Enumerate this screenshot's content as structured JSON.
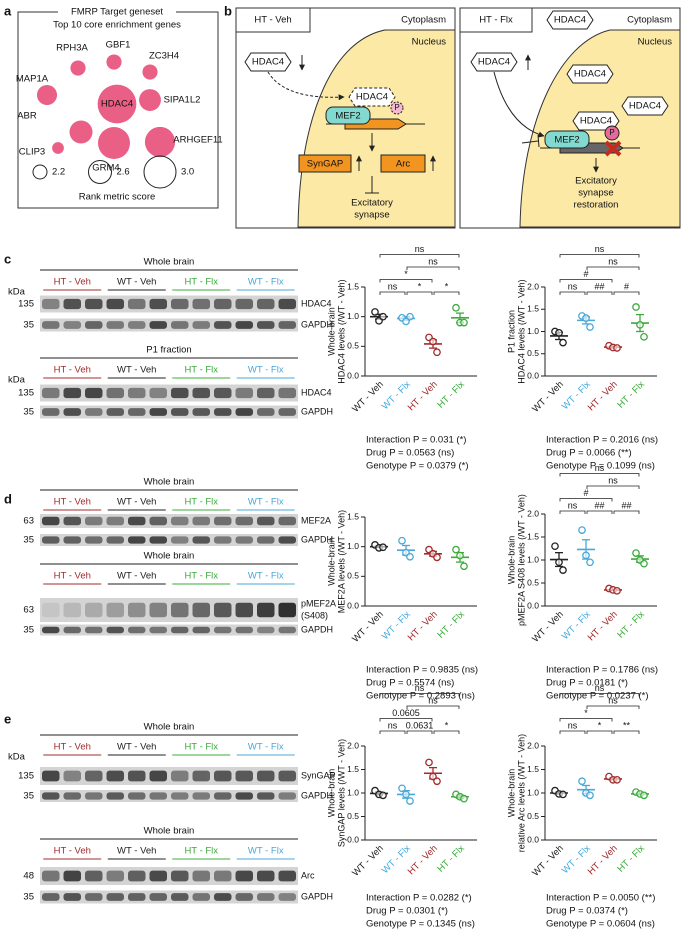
{
  "panel_labels": [
    "a",
    "b",
    "c",
    "d",
    "e"
  ],
  "diagram": {
    "left": {
      "condition": "HT - Veh",
      "cytoplasm": "Cytoplasm",
      "nucleus": "Nucleus",
      "hdac4": [
        "HDAC4",
        "HDAC4"
      ],
      "phospho": "P",
      "mef2": "MEF2",
      "syngap": "SynGAP",
      "arc": "Arc",
      "outcome": [
        "Excitatory",
        "synapse"
      ]
    },
    "right": {
      "condition": "HT - Flx",
      "cytoplasm": "Cytoplasm",
      "nucleus": "Nucleus",
      "hdac4": [
        "HDAC4",
        "HDAC4",
        "HDAC4",
        "HDAC4",
        "HDAC4"
      ],
      "phospho": "P",
      "mef2": "MEF2",
      "outcome": [
        "Excitatory",
        "synapse",
        "restoration"
      ]
    }
  },
  "blots": [
    {
      "title": "Whole brain",
      "groups": [
        "HT - Veh",
        "WT - Veh",
        "HT - Flx",
        "WT - Flx"
      ],
      "colors": [
        "#a32b2b",
        "#222222",
        "#3eaa3e",
        "#4aa8d8"
      ],
      "kda": "kDa",
      "markers": [
        135,
        35
      ],
      "bands": [
        "HDAC4",
        "GAPDH"
      ]
    },
    {
      "title": "P1 fraction",
      "groups": [
        "HT - Veh",
        "WT - Veh",
        "HT - Flx",
        "WT - Flx"
      ],
      "colors": [
        "#a32b2b",
        "#222222",
        "#3eaa3e",
        "#4aa8d8"
      ],
      "kda": "kDa",
      "markers": [
        135,
        35
      ],
      "bands": [
        "HDAC4",
        "GAPDH"
      ]
    },
    {
      "title": "Whole brain",
      "groups": [
        "HT - Veh",
        "WT - Veh",
        "HT - Flx",
        "WT - Flx"
      ],
      "colors": [
        "#a32b2b",
        "#222222",
        "#3eaa3e",
        "#4aa8d8"
      ],
      "markers": [
        63,
        35
      ],
      "bands": [
        "MEF2A",
        "GAPDH"
      ]
    },
    {
      "title": "Whole brain",
      "groups": [
        "HT - Veh",
        "WT - Veh",
        "HT - Flx",
        "WT - Flx"
      ],
      "colors": [
        "#a32b2b",
        "#222222",
        "#3eaa3e",
        "#4aa8d8"
      ],
      "markers": [
        63,
        35
      ],
      "bands": [
        [
          "pMEF2A",
          "(S408)"
        ],
        "GAPDH"
      ]
    },
    {
      "title": "Whole brain",
      "groups": [
        "HT - Veh",
        "WT - Veh",
        "HT - Flx",
        "WT - Flx"
      ],
      "colors": [
        "#a32b2b",
        "#222222",
        "#3eaa3e",
        "#4aa8d8"
      ],
      "kda": "kDa",
      "markers": [
        135,
        35
      ],
      "bands": [
        "SynGAP",
        "GAPDH"
      ]
    },
    {
      "title": "Whole brain",
      "groups": [
        "HT - Veh",
        "WT - Veh",
        "HT - Flx",
        "WT - Flx"
      ],
      "colors": [
        "#a32b2b",
        "#222222",
        "#3eaa3e",
        "#4aa8d8"
      ],
      "markers": [
        48,
        35
      ],
      "bands": [
        "Arc",
        "GAPDH"
      ]
    }
  ],
  "chart_data": [
    {
      "type": "bubble",
      "title": "FMRP Target geneset",
      "subtitle": "Top 10 core enrichment genes",
      "categories": [
        "RPH3A",
        "GBF1",
        "ZC3H4",
        "MAP1A",
        "HDAC4",
        "SIPA1L2",
        "ABR",
        "CLIP3",
        "GRM4",
        "ARHGEF11"
      ],
      "values": [
        2.25,
        2.25,
        2.25,
        2.47,
        3.3,
        2.55,
        2.6,
        2.1,
        3.0,
        2.92
      ],
      "color": "#ea5f86",
      "size_legend": {
        "values": [
          2.2,
          2.6,
          {
            "value": 3,
            "label": "3.0"
          }
        ],
        "label": "Rank metric score"
      }
    },
    {
      "type": "dot",
      "categories": [
        "WT - Veh",
        "WT - Flx",
        "HT - Veh",
        "HT - Flx"
      ],
      "colors": [
        "#222222",
        "#4aa8d8",
        "#a32b2b",
        "#3eaa3e"
      ],
      "ylabel": [
        "Whole-brain",
        "HDAC4 levels (/WT - Veh)"
      ],
      "ylim": [
        0,
        1.5
      ],
      "yticks": [
        {
          "value": 0,
          "label": "0.0"
        },
        0.5,
        {
          "value": 1,
          "label": "1.0"
        },
        1.5
      ],
      "points": [
        [
          1.08,
          0.93,
          1.0
        ],
        [
          0.98,
          0.92,
          1.0
        ],
        [
          0.65,
          0.58,
          0.4
        ],
        [
          1.15,
          0.9,
          0.9
        ]
      ],
      "means": [
        1.0,
        0.97,
        0.54,
        0.98
      ],
      "sem": [
        0.04,
        0.03,
        0.07,
        0.08
      ],
      "comparisons": [
        {
          "from": "WT - Veh",
          "to": "HT - Flx",
          "label": "ns"
        },
        {
          "from": "WT - Flx",
          "to": "HT - Flx",
          "label": "ns"
        },
        {
          "from": "WT - Veh",
          "to": "HT - Veh",
          "label": "*"
        },
        {
          "from": "WT - Veh",
          "to": "WT - Flx",
          "label": "ns"
        },
        {
          "from": "WT - Flx",
          "to": "HT - Veh",
          "label": "*"
        },
        {
          "from": "HT - Veh",
          "to": "HT - Flx",
          "label": "*"
        }
      ],
      "stats": [
        "Interaction P = 0.031 (*)",
        "Drug P = 0.0563 (ns)",
        "Genotype P = 0.0379 (*)"
      ]
    },
    {
      "type": "dot",
      "categories": [
        "WT - Veh",
        "WT - Flx",
        "HT - Veh",
        "HT - Flx"
      ],
      "colors": [
        "#222222",
        "#4aa8d8",
        "#a32b2b",
        "#3eaa3e"
      ],
      "ylabel": [
        "P1 fraction",
        "HDAC4 levels (/WT - Veh)"
      ],
      "ylim": [
        0,
        2
      ],
      "yticks": [
        {
          "value": 0,
          "label": "0.0"
        },
        0.5,
        {
          "value": 1,
          "label": "1.0"
        },
        1.5,
        {
          "value": 2,
          "label": "2.0"
        }
      ],
      "points": [
        [
          1.0,
          0.97,
          0.75
        ],
        [
          1.35,
          1.3,
          1.1
        ],
        [
          0.68,
          0.64,
          0.63
        ],
        [
          1.55,
          1.15,
          0.88
        ]
      ],
      "means": [
        0.9,
        1.25,
        0.65,
        1.19
      ],
      "sem": [
        0.08,
        0.08,
        0.02,
        0.19
      ],
      "comparisons": [
        {
          "from": "WT - Veh",
          "to": "HT - Flx",
          "label": "ns"
        },
        {
          "from": "WT - Flx",
          "to": "HT - Flx",
          "label": "ns"
        },
        {
          "from": "WT - Veh",
          "to": "HT - Veh",
          "label": "#"
        },
        {
          "from": "WT - Veh",
          "to": "WT - Flx",
          "label": "ns"
        },
        {
          "from": "WT - Flx",
          "to": "HT - Veh",
          "label": "##"
        },
        {
          "from": "HT - Veh",
          "to": "HT - Flx",
          "label": "#"
        }
      ],
      "stats": [
        "Interaction P = 0.2016 (ns)",
        "Drug P = 0.0066 (**)",
        "Genotype P = 0.1099 (ns)"
      ]
    },
    {
      "type": "dot",
      "categories": [
        "WT - Veh",
        "WT - Flx",
        "HT - Veh",
        "HT - Flx"
      ],
      "colors": [
        "#222222",
        "#4aa8d8",
        "#a32b2b",
        "#3eaa3e"
      ],
      "ylabel": [
        "Whole-brain",
        "MEF2A levels (/WT - Veh)"
      ],
      "ylim": [
        0,
        1.5
      ],
      "yticks": [
        {
          "value": 0,
          "label": "0.0"
        },
        0.5,
        {
          "value": 1,
          "label": "1.0"
        },
        1.5
      ],
      "points": [
        [
          1.03,
          0.98,
          0.99
        ],
        [
          1.1,
          0.9,
          0.83
        ],
        [
          0.95,
          0.88,
          0.82
        ],
        [
          0.95,
          0.85,
          0.67
        ]
      ],
      "means": [
        1.0,
        0.94,
        0.88,
        0.82
      ],
      "sem": [
        0.01,
        0.08,
        0.04,
        0.08
      ],
      "comparisons": [],
      "stats": [
        "Interaction P = 0.9835 (ns)",
        "Drug P = 0.5574 (ns)",
        "Genotype P = 0.2893 (ns)"
      ]
    },
    {
      "type": "dot",
      "categories": [
        "WT - Veh",
        "WT - Flx",
        "HT - Veh",
        "HT - Flx"
      ],
      "colors": [
        "#222222",
        "#4aa8d8",
        "#a32b2b",
        "#3eaa3e"
      ],
      "ylabel": [
        "Whole-brain",
        "pMEF2A S408 levels (/WT - Veh)"
      ],
      "ylim": [
        0,
        2
      ],
      "yticks": [
        {
          "value": 0,
          "label": "0.0"
        },
        0.5,
        {
          "value": 1,
          "label": "1.0"
        },
        1.5,
        {
          "value": 2,
          "label": "2.0"
        }
      ],
      "points": [
        [
          1.3,
          0.95,
          0.78
        ],
        [
          1.65,
          1.1,
          0.95
        ],
        [
          0.38,
          0.35,
          0.33
        ],
        [
          1.15,
          1.0,
          0.92
        ]
      ],
      "means": [
        1.01,
        1.23,
        0.35,
        1.02
      ],
      "sem": [
        0.15,
        0.21,
        0.01,
        0.07
      ],
      "comparisons": [
        {
          "from": "WT - Veh",
          "to": "HT - Flx",
          "label": "ns"
        },
        {
          "from": "WT - Flx",
          "to": "HT - Flx",
          "label": "ns"
        },
        {
          "from": "WT - Veh",
          "to": "HT - Veh",
          "label": "#"
        },
        {
          "from": "WT - Veh",
          "to": "WT - Flx",
          "label": "ns"
        },
        {
          "from": "WT - Flx",
          "to": "HT - Veh",
          "label": "##"
        },
        {
          "from": "HT - Veh",
          "to": "HT - Flx",
          "label": "##"
        }
      ],
      "stats": [
        "Interaction P = 0.1786 (ns)",
        "Drug P = 0.0181 (*)",
        "Genotype P = 0.0237 (*)"
      ]
    },
    {
      "type": "dot",
      "categories": [
        "WT - Veh",
        "WT - Flx",
        "HT - Veh",
        "HT - Flx"
      ],
      "colors": [
        "#222222",
        "#4aa8d8",
        "#a32b2b",
        "#3eaa3e"
      ],
      "ylabel": [
        "Whole-brain",
        "SynGAP levels (/WT - Veh)"
      ],
      "ylim": [
        0,
        2
      ],
      "yticks": [
        {
          "value": 0,
          "label": "0.0"
        },
        0.5,
        {
          "value": 1,
          "label": "1.0"
        },
        1.5,
        {
          "value": 2,
          "label": "2.0"
        }
      ],
      "points": [
        [
          1.05,
          0.97,
          0.95
        ],
        [
          1.1,
          0.97,
          0.83
        ],
        [
          1.65,
          1.35,
          1.25
        ],
        [
          0.97,
          0.92,
          0.88
        ]
      ],
      "means": [
        0.99,
        0.97,
        1.42,
        0.92
      ],
      "sem": [
        0.03,
        0.08,
        0.12,
        0.03
      ],
      "comparisons": [
        {
          "from": "WT - Veh",
          "to": "HT - Flx",
          "label": "ns"
        },
        {
          "from": "WT - Flx",
          "to": "HT - Flx",
          "label": "ns"
        },
        {
          "from": "WT - Veh",
          "to": "HT - Veh",
          "label": "0.0605"
        },
        {
          "from": "WT - Veh",
          "to": "WT - Flx",
          "label": "ns"
        },
        {
          "from": "WT - Flx",
          "to": "HT - Veh",
          "label": "0.0631"
        },
        {
          "from": "HT - Veh",
          "to": "HT - Flx",
          "label": "*"
        }
      ],
      "stats": [
        "Interaction P = 0.0282 (*)",
        "Drug P = 0.0301 (*)",
        "Genotype P = 0.1345 (ns)"
      ]
    },
    {
      "type": "dot",
      "categories": [
        "WT - Veh",
        "WT - Flx",
        "HT - Veh",
        "HT - Flx"
      ],
      "colors": [
        "#222222",
        "#4aa8d8",
        "#a32b2b",
        "#3eaa3e"
      ],
      "ylabel": [
        "Whole-brain",
        "relative Arc levels (/WT - Veh)"
      ],
      "ylim": [
        0,
        2
      ],
      "yticks": [
        {
          "value": 0,
          "label": "0.0"
        },
        0.5,
        {
          "value": 1,
          "label": "1.0"
        },
        1.5,
        {
          "value": 2,
          "label": "2.0"
        }
      ],
      "points": [
        [
          1.05,
          0.98,
          0.97
        ],
        [
          1.25,
          1.0,
          0.95
        ],
        [
          1.35,
          1.28,
          1.28
        ],
        [
          1.02,
          0.98,
          0.95
        ]
      ],
      "means": [
        1.0,
        1.07,
        1.3,
        0.98
      ],
      "sem": [
        0.02,
        0.09,
        0.02,
        0.02
      ],
      "comparisons": [
        {
          "from": "WT - Veh",
          "to": "HT - Flx",
          "label": "ns"
        },
        {
          "from": "WT - Flx",
          "to": "HT - Flx",
          "label": "ns"
        },
        {
          "from": "WT - Veh",
          "to": "HT - Veh",
          "label": "*"
        },
        {
          "from": "WT - Veh",
          "to": "WT - Flx",
          "label": "ns"
        },
        {
          "from": "WT - Flx",
          "to": "HT - Veh",
          "label": "*"
        },
        {
          "from": "HT - Veh",
          "to": "HT - Flx",
          "label": "**"
        }
      ],
      "stats": [
        "Interaction P = 0.0050 (**)",
        "Drug P = 0.0374 (*)",
        "Genotype P = 0.0604 (ns)"
      ]
    }
  ]
}
